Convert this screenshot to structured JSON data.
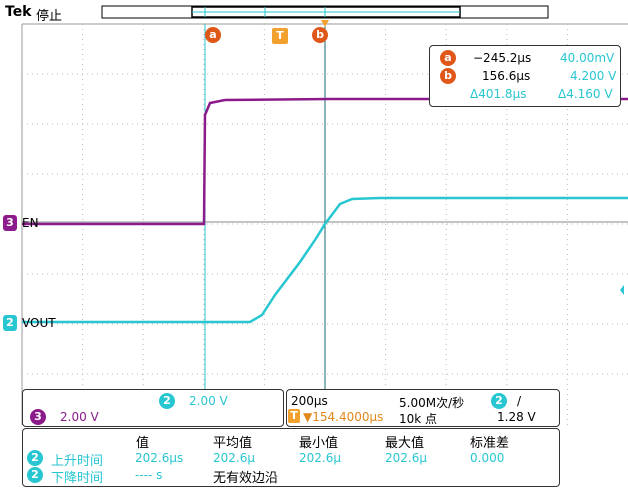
{
  "brand": "Tek",
  "run_state": "停止",
  "cursor_markers": {
    "a": "a",
    "b": "b",
    "trigger": "T"
  },
  "cursor_readout": {
    "a_time": "−245.2µs",
    "a_value": "40.00mV",
    "b_time": "156.6µs",
    "b_value": "4.200 V",
    "delta_time": "Δ401.8µs",
    "delta_value": "Δ4.160 V"
  },
  "channels": {
    "ch3": {
      "num": "3",
      "label": "EN",
      "scale": "2.00 V",
      "color": "#8b1a8b"
    },
    "ch2": {
      "num": "2",
      "label": "VOUT",
      "scale": "2.00 V",
      "color": "#27c6d1"
    }
  },
  "horizontal": {
    "timebase": "200µs",
    "sample_rate": "5.00M次/秒",
    "trigger_pos": "▼154.4000µs",
    "record_length": "10k 点",
    "trigger_level": "1.28 V",
    "trigger_channel": "2",
    "trigger_slope": "/"
  },
  "measurements": {
    "headers": [
      "值",
      "平均值",
      "最小值",
      "最大值",
      "标准差"
    ],
    "rows": [
      {
        "ch": "2",
        "name": "上升时间",
        "value": "202.6µs",
        "mean": "202.6µ",
        "min": "202.6µ",
        "max": "202.6µ",
        "std": "0.000"
      },
      {
        "ch": "2",
        "name": "下降时间",
        "value": "---- s",
        "note": "无有效边沿"
      }
    ]
  },
  "colors": {
    "ch2": "#27c6d1",
    "ch3": "#8b1a8b",
    "cursor": "#e0571a",
    "trigger": "#f2a12e"
  }
}
